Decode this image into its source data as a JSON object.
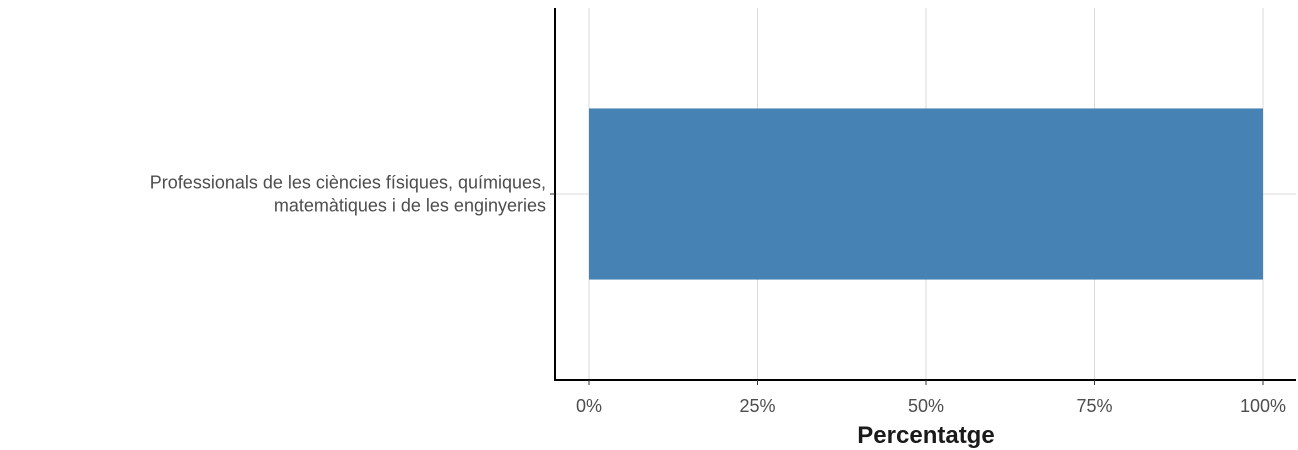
{
  "chart_data": {
    "type": "bar",
    "orientation": "horizontal",
    "categories": [
      [
        "Professionals de les ciències físiques, químiques,",
        "matemàtiques i de les enginyeries"
      ]
    ],
    "values": [
      100
    ],
    "xlabel": "Percentatge",
    "ylabel": "",
    "xlim": [
      0,
      100
    ],
    "x_ticks": [
      0,
      25,
      50,
      75,
      100
    ],
    "x_tick_labels": [
      "0%",
      "25%",
      "50%",
      "75%",
      "100%"
    ],
    "grid": true,
    "legend": "none",
    "colors": {
      "bar": "#4682b4",
      "grid": "#d9d9d9",
      "axis": "#000000"
    }
  }
}
